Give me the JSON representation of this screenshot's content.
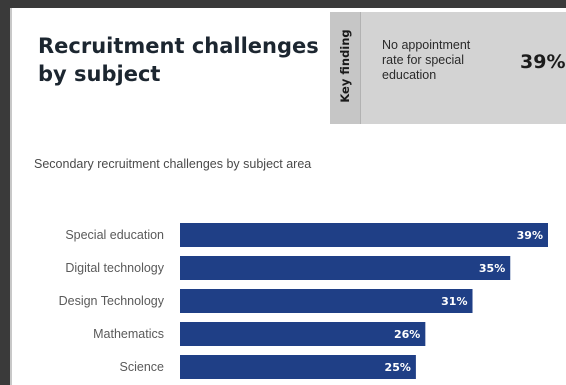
{
  "title": "Recruitment challenges by subject",
  "key_finding": {
    "label": "Key finding",
    "text": "No appointment rate for special education",
    "value": "39%"
  },
  "subtitle": "Secondary recruitment challenges by subject area",
  "colors": {
    "bar": "#1f3f86",
    "bar_label": "#ffffff",
    "category_label": "#5a5a5a",
    "key_panel": "#d3d3d3"
  },
  "chart_data": {
    "type": "bar",
    "orientation": "horizontal",
    "categories": [
      "Special education",
      "Digital technology",
      "Design Technology",
      "Mathematics",
      "Science"
    ],
    "values": [
      39,
      35,
      31,
      26,
      25
    ],
    "value_labels": [
      "39%",
      "35%",
      "31%",
      "26%",
      "25%"
    ],
    "unit": "%",
    "xlim": [
      0,
      39
    ],
    "grid": false,
    "legend": "none"
  }
}
